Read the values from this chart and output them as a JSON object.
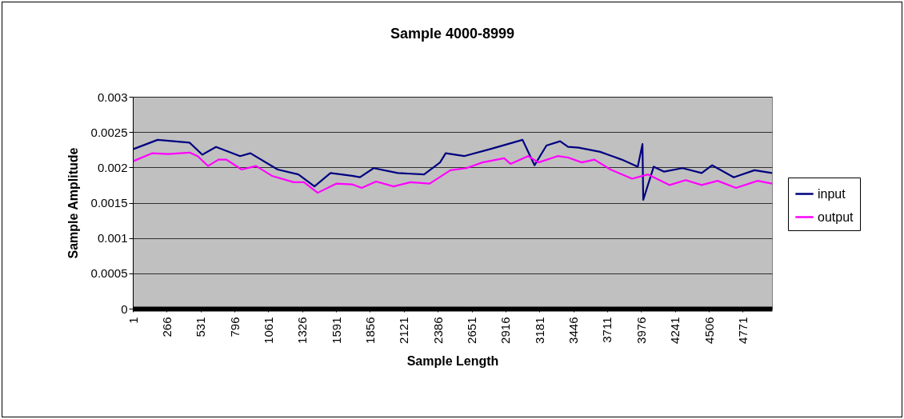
{
  "chart_data": {
    "type": "line",
    "title": "Sample 4000-8999",
    "xlabel": "Sample Length",
    "ylabel": "Sample Amplitude",
    "xlim": [
      1,
      5000
    ],
    "xticks": [
      1,
      266,
      531,
      796,
      1061,
      1326,
      1591,
      1856,
      2121,
      2386,
      2651,
      2916,
      3181,
      3446,
      3711,
      3976,
      4241,
      4506,
      4771
    ],
    "ylim": [
      0,
      0.003
    ],
    "yticks": [
      0,
      0.0005,
      0.001,
      0.0015,
      0.002,
      0.0025,
      0.003
    ],
    "grid": "y",
    "legend": "right",
    "marker": "none",
    "line_style": "solid",
    "series": [
      {
        "name": "input",
        "color": "#000080",
        "x": [
          7,
          195,
          445,
          545,
          652,
          840,
          921,
          1134,
          1296,
          1422,
          1547,
          1716,
          1778,
          1885,
          2073,
          2279,
          2404,
          2448,
          2592,
          2798,
          3049,
          3143,
          3236,
          3343,
          3405,
          3487,
          3656,
          3825,
          3950,
          3987,
          3993,
          4075,
          4156,
          4300,
          4450,
          4532,
          4701,
          4863,
          5000
        ],
        "values": [
          0.00226,
          0.00239,
          0.00235,
          0.00218,
          0.00229,
          0.00216,
          0.0022,
          0.00197,
          0.0019,
          0.00173,
          0.00192,
          0.00188,
          0.00186,
          0.00199,
          0.00192,
          0.0019,
          0.00207,
          0.0022,
          0.00216,
          0.00226,
          0.00239,
          0.00203,
          0.00231,
          0.00237,
          0.00229,
          0.00228,
          0.00222,
          0.00211,
          0.00201,
          0.00233,
          0.00154,
          0.00201,
          0.00194,
          0.00199,
          0.00192,
          0.00203,
          0.00186,
          0.00196,
          0.00192
        ]
      },
      {
        "name": "output",
        "color": "#ff00ff",
        "x": [
          7,
          151,
          276,
          445,
          508,
          589,
          671,
          733,
          852,
          965,
          1090,
          1259,
          1340,
          1447,
          1591,
          1716,
          1791,
          1904,
          2041,
          2173,
          2323,
          2485,
          2611,
          2736,
          2905,
          2955,
          3093,
          3174,
          3324,
          3405,
          3512,
          3612,
          3737,
          3906,
          4031,
          4200,
          4325,
          4450,
          4575,
          4719,
          4888,
          5000
        ],
        "values": [
          0.00209,
          0.0022,
          0.00219,
          0.00221,
          0.00216,
          0.00202,
          0.00211,
          0.00211,
          0.00197,
          0.00202,
          0.00188,
          0.00179,
          0.00179,
          0.00164,
          0.00177,
          0.00176,
          0.00171,
          0.0018,
          0.00173,
          0.00179,
          0.00177,
          0.00196,
          0.00199,
          0.00207,
          0.00213,
          0.00205,
          0.00216,
          0.00207,
          0.00216,
          0.00214,
          0.00207,
          0.00211,
          0.00197,
          0.00184,
          0.0019,
          0.00175,
          0.00182,
          0.00175,
          0.00181,
          0.00171,
          0.00181,
          0.00177
        ]
      }
    ]
  }
}
